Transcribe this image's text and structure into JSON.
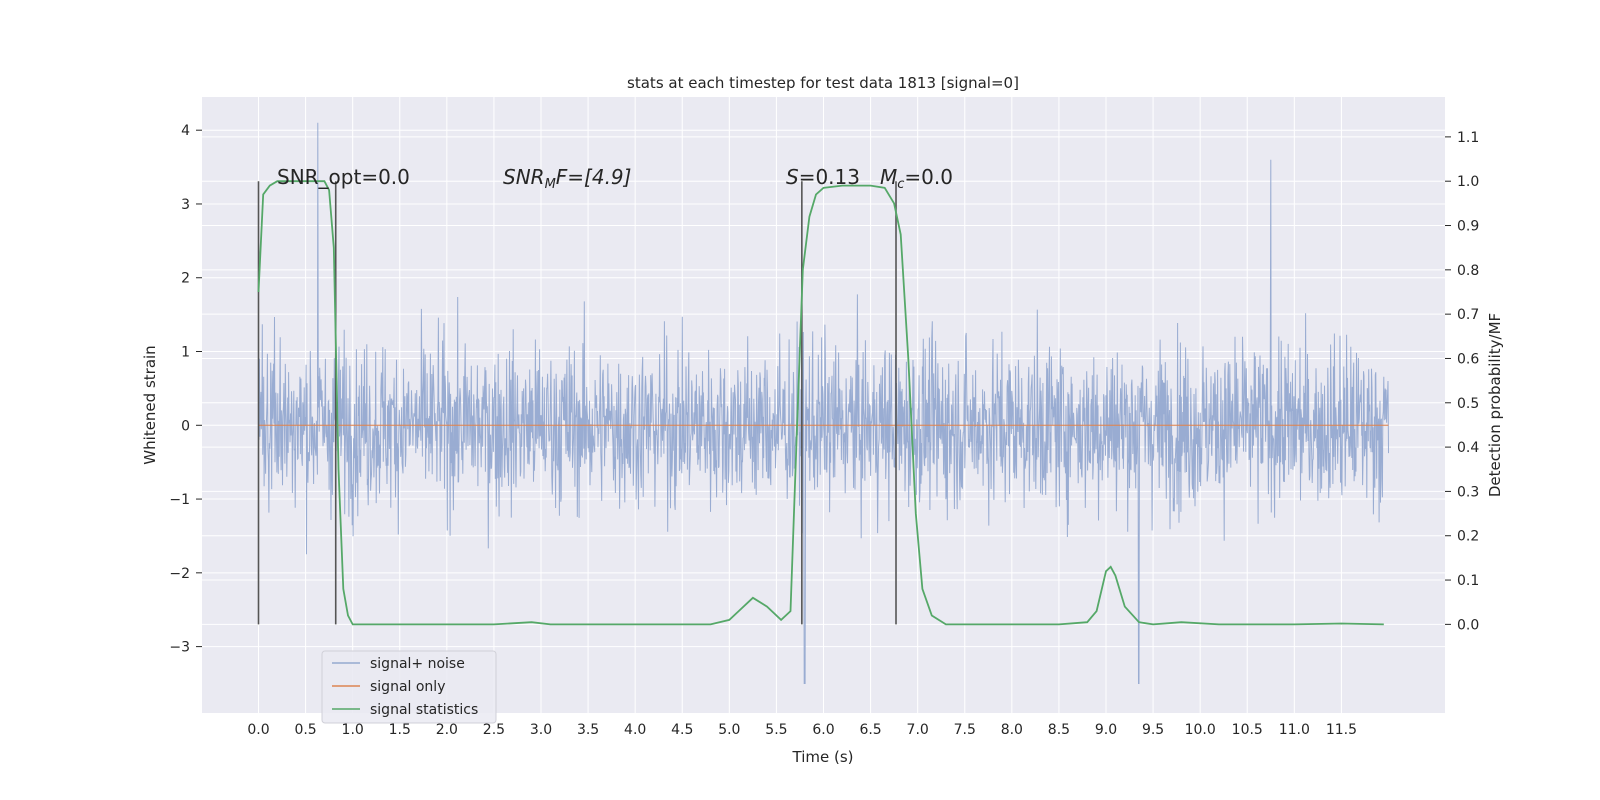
{
  "chart_data": {
    "type": "line",
    "title": "stats at each timestep for test data 1813 [signal=0]",
    "xlabel": "Time (s)",
    "ylabel_left": "Whitened strain",
    "ylabel_right": "Detection probability/MF",
    "xlim": [
      -0.6,
      12.6
    ],
    "ylim_left": [
      -3.9,
      4.45
    ],
    "ylim_right": [
      -0.2,
      1.19
    ],
    "xticks": [
      "0.0",
      "0.5",
      "1.0",
      "1.5",
      "2.0",
      "2.5",
      "3.0",
      "3.5",
      "4.0",
      "4.5",
      "5.0",
      "5.5",
      "6.0",
      "6.5",
      "7.0",
      "7.5",
      "8.0",
      "8.5",
      "9.0",
      "9.5",
      "10.0",
      "10.5",
      "11.0",
      "11.5"
    ],
    "yticks_left": [
      "4",
      "3",
      "2",
      "1",
      "0",
      "−1",
      "−2",
      "−3"
    ],
    "yticks_right": [
      "1.1",
      "1.0",
      "0.9",
      "0.8",
      "0.7",
      "0.6",
      "0.5",
      "0.4",
      "0.3",
      "0.2",
      "0.1",
      "0.0"
    ],
    "grid": true,
    "legend_position": "lower-left",
    "annotations": {
      "snr_opt": "SNR_opt=0.0",
      "snr_mf_main": "SNR",
      "snr_mf_sub": "M",
      "snr_mf_rest": "F=[4.9]",
      "s_label": "S",
      "s_rest": "=0.13",
      "mc_main": "M",
      "mc_sub": "c",
      "mc_rest": "=0.0"
    },
    "markers_x": [
      0.0,
      0.82,
      5.77,
      6.77
    ],
    "series": [
      {
        "name": "signal+ noise",
        "color": "#95a9d0",
        "axis": "left",
        "x_range": [
          0.0,
          12.0
        ],
        "amplitude_range": [
          -3.5,
          4.1
        ],
        "peaks": [
          [
            0.63,
            4.1
          ],
          [
            10.75,
            3.6
          ],
          [
            9.35,
            -3.5
          ],
          [
            5.8,
            -3.5
          ]
        ]
      },
      {
        "name": "signal only",
        "color": "#dd8452",
        "axis": "left",
        "x": [
          0.0,
          12.0
        ],
        "values": [
          0.0,
          0.0
        ]
      },
      {
        "name": "signal statistics",
        "color": "#55a868",
        "axis": "right",
        "x": [
          0.0,
          0.05,
          0.12,
          0.2,
          0.3,
          0.5,
          0.7,
          0.75,
          0.8,
          0.85,
          0.9,
          0.95,
          1.0,
          1.1,
          1.5,
          2.0,
          2.5,
          2.9,
          3.1,
          3.5,
          4.0,
          4.5,
          4.8,
          5.0,
          5.1,
          5.25,
          5.4,
          5.55,
          5.65,
          5.72,
          5.78,
          5.85,
          5.92,
          6.0,
          6.2,
          6.5,
          6.65,
          6.75,
          6.82,
          6.9,
          6.98,
          7.05,
          7.15,
          7.3,
          7.5,
          8.0,
          8.5,
          8.8,
          8.9,
          9.0,
          9.05,
          9.1,
          9.2,
          9.35,
          9.5,
          9.8,
          10.2,
          11.0,
          11.5,
          11.95
        ],
        "values": [
          0.75,
          0.97,
          0.99,
          1.0,
          1.0,
          1.0,
          1.0,
          0.98,
          0.85,
          0.35,
          0.08,
          0.02,
          0.0,
          0.0,
          0.0,
          0.0,
          0.0,
          0.005,
          0.0,
          0.0,
          0.0,
          0.0,
          0.0,
          0.01,
          0.03,
          0.06,
          0.04,
          0.01,
          0.03,
          0.45,
          0.8,
          0.92,
          0.97,
          0.985,
          0.99,
          0.99,
          0.985,
          0.95,
          0.88,
          0.6,
          0.25,
          0.08,
          0.02,
          0.0,
          0.0,
          0.0,
          0.0,
          0.005,
          0.03,
          0.12,
          0.13,
          0.11,
          0.04,
          0.005,
          0.0,
          0.005,
          0.0,
          0.0,
          0.002,
          0.0
        ]
      }
    ]
  }
}
